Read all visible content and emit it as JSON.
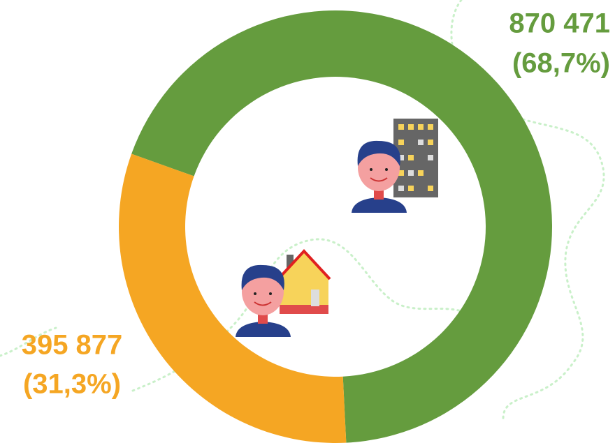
{
  "chart_data": {
    "type": "donut",
    "values": [
      870471,
      395877
    ],
    "value_labels": [
      "870 471",
      "395 877"
    ],
    "percent_values": [
      68.7,
      31.3
    ],
    "percent_labels": [
      "(68,7%)",
      "(31,3%)"
    ],
    "colors": [
      "#659c3e",
      "#f5a623"
    ]
  }
}
